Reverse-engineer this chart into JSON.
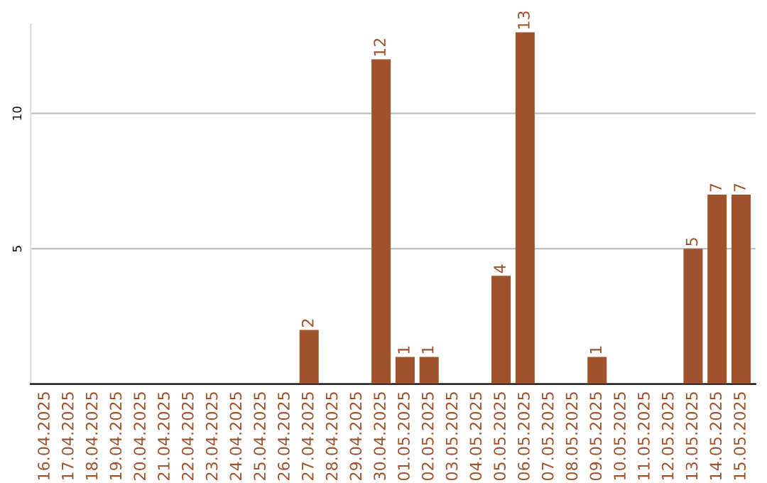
{
  "chart_data": {
    "type": "bar",
    "categories": [
      "16.04.2025",
      "17.04.2025",
      "18.04.2025",
      "19.04.2025",
      "20.04.2025",
      "21.04.2025",
      "22.04.2025",
      "23.04.2025",
      "24.04.2025",
      "25.04.2025",
      "26.04.2025",
      "27.04.2025",
      "28.04.2025",
      "29.04.2025",
      "30.04.2025",
      "01.05.2025",
      "02.05.2025",
      "03.05.2025",
      "04.05.2025",
      "05.05.2025",
      "06.05.2025",
      "07.05.2025",
      "08.05.2025",
      "09.05.2025",
      "10.05.2025",
      "11.05.2025",
      "12.05.2025",
      "13.05.2025",
      "14.05.2025",
      "15.05.2025"
    ],
    "values": [
      0,
      0,
      0,
      0,
      0,
      0,
      0,
      0,
      0,
      0,
      0,
      2,
      0,
      0,
      12,
      1,
      1,
      0,
      0,
      4,
      13,
      0,
      0,
      1,
      0,
      0,
      0,
      5,
      7,
      7
    ],
    "value_labels": [
      null,
      null,
      null,
      null,
      null,
      null,
      null,
      null,
      null,
      null,
      null,
      "2",
      null,
      null,
      "12",
      "1",
      "1",
      null,
      null,
      "4",
      "13",
      null,
      null,
      "1",
      null,
      null,
      null,
      "5",
      "7",
      "7"
    ],
    "color": "#a0522d",
    "ylim": [
      0,
      13.3
    ],
    "yticks": [
      5,
      10
    ],
    "grid": "y"
  }
}
